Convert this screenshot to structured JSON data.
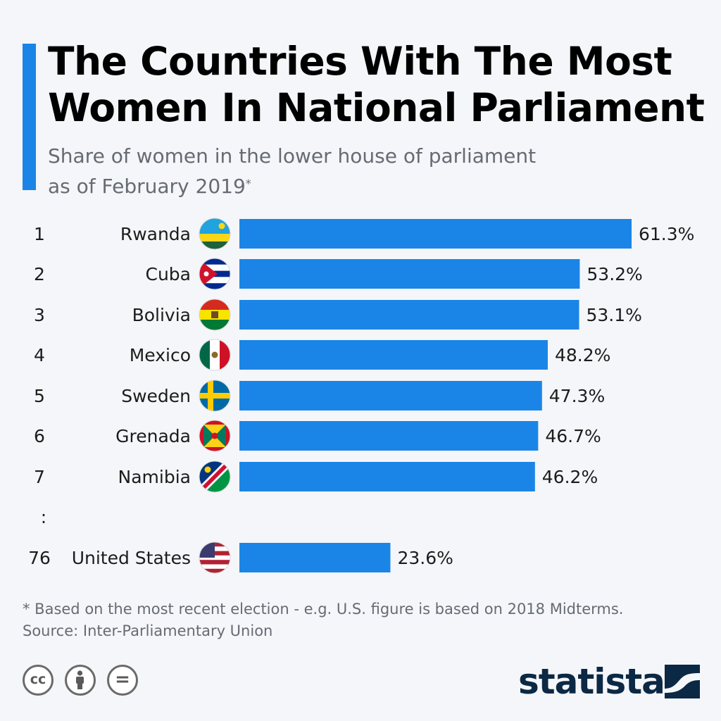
{
  "title": "The Countries With The Most Women In National Parliament",
  "subtitle": "Share of women in the lower house of parliament as of February 2019",
  "subtitle_marker": "*",
  "chart_data": {
    "type": "bar",
    "orientation": "horizontal",
    "categories": [
      "Rwanda",
      "Cuba",
      "Bolivia",
      "Mexico",
      "Sweden",
      "Grenada",
      "Namibia",
      "United States"
    ],
    "ranks": [
      "1",
      "2",
      "3",
      "4",
      "5",
      "6",
      "7",
      "76"
    ],
    "values": [
      61.3,
      53.2,
      53.1,
      48.2,
      47.3,
      46.7,
      46.2,
      23.6
    ],
    "value_labels": [
      "61.3%",
      "53.2%",
      "53.1%",
      "48.2%",
      "47.3%",
      "46.7%",
      "46.2%",
      "23.6%"
    ],
    "flag_icons": [
      "rwanda-flag-icon",
      "cuba-flag-icon",
      "bolivia-flag-icon",
      "mexico-flag-icon",
      "sweden-flag-icon",
      "grenada-flag-icon",
      "namibia-flag-icon",
      "united-states-flag-icon"
    ],
    "gap_marker": ":",
    "bar_color": "#1a85e6",
    "xlim": [
      0,
      62
    ],
    "grid": false,
    "legend": "none"
  },
  "footnote": {
    "line1": "* Based on the most recent election - e.g. U.S. figure is based on 2018 Midterms.",
    "line2": "Source: Inter-Parliamentary Union"
  },
  "license_icons": [
    "cc-icon",
    "attribution-icon",
    "no-derivatives-icon"
  ],
  "license_glyphs": [
    "cc",
    "="
  ],
  "brand": {
    "name": "statista",
    "color": "#0b2844"
  },
  "colors": {
    "accent": "#1a85e6",
    "background": "#f4f6f9"
  }
}
